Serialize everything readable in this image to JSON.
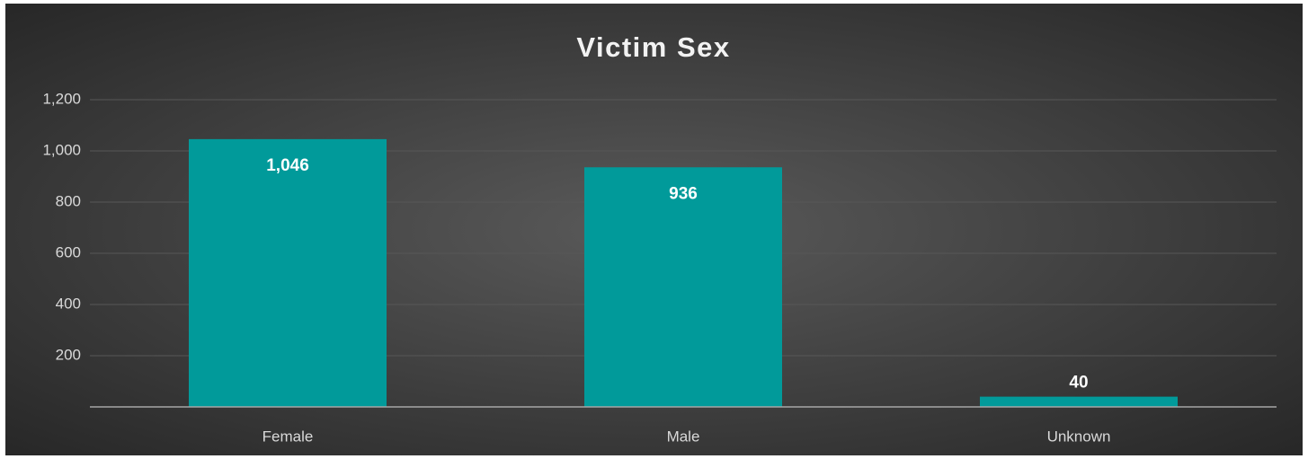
{
  "chart_data": {
    "type": "bar",
    "title": "Victim Sex",
    "categories": [
      "Female",
      "Male",
      "Unknown"
    ],
    "values": [
      1046,
      936,
      40
    ],
    "value_labels": [
      "1,046",
      "936",
      "40"
    ],
    "color": "#019a9a",
    "ylim": [
      0,
      1200
    ],
    "yticks": [
      200,
      400,
      600,
      800,
      {
        "value": 1000,
        "label": "1,000"
      },
      {
        "value": 1200,
        "label": "1,200"
      }
    ],
    "grid": true
  }
}
